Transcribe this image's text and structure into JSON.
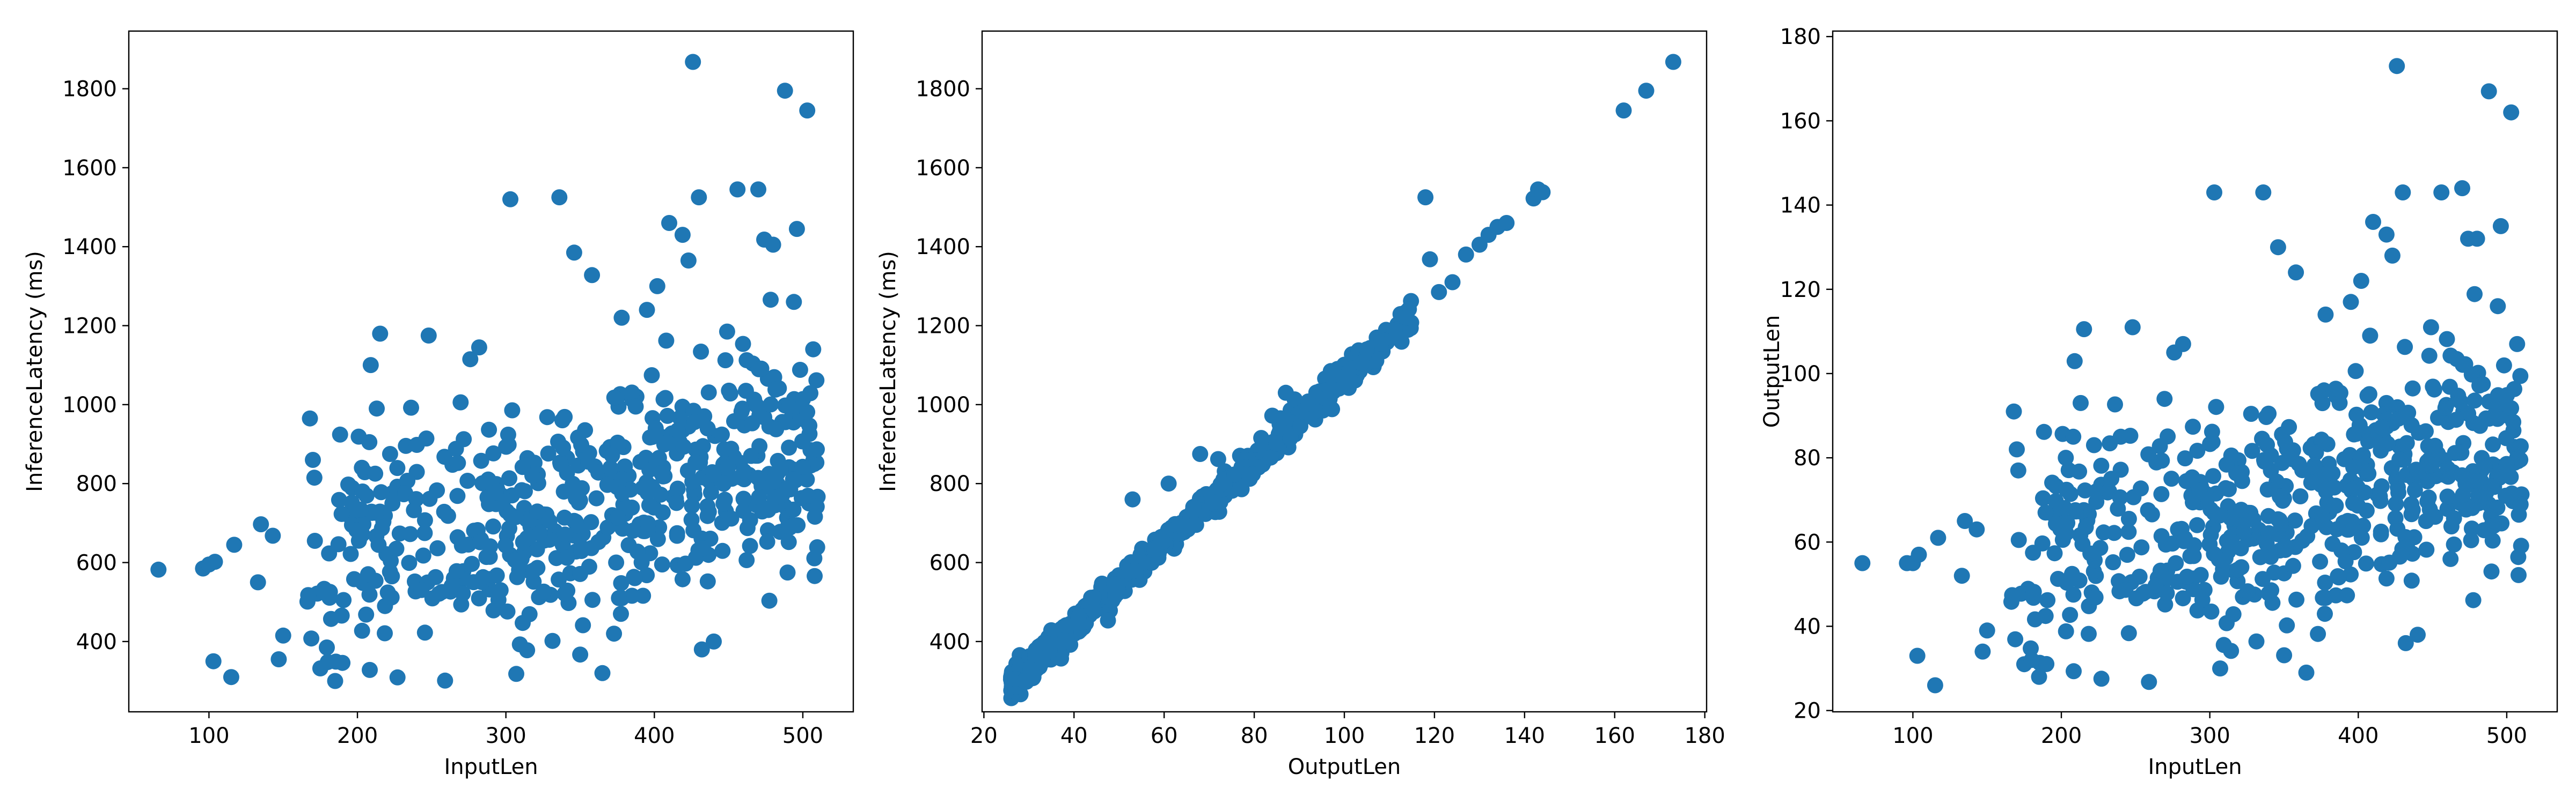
{
  "chart_data": [
    {
      "type": "scatter",
      "xlabel": "InputLen",
      "ylabel": "InferenceLatency (ms)",
      "xlim": [
        46,
        534
      ],
      "ylim": [
        222,
        1946
      ],
      "xticks": [
        100,
        200,
        300,
        400,
        500
      ],
      "yticks": [
        400,
        600,
        800,
        1000,
        1200,
        1400,
        1600,
        1800
      ],
      "grid": false,
      "color": "#1f77b4",
      "cloud": {
        "n": 560,
        "seed": 11,
        "x_min": 165,
        "x_max": 510,
        "x_skew": 0.72,
        "center": 710,
        "spread": 150,
        "slope": 0.75,
        "x_ref": 300
      },
      "points": [
        [
          66,
          582
        ],
        [
          96,
          585
        ],
        [
          100,
          595
        ],
        [
          104,
          602
        ],
        [
          103,
          350
        ],
        [
          115,
          310
        ],
        [
          117,
          645
        ],
        [
          133,
          550
        ],
        [
          135,
          697
        ],
        [
          143,
          668
        ],
        [
          147,
          355
        ],
        [
          150,
          415
        ],
        [
          168,
          965
        ],
        [
          170,
          860
        ],
        [
          171,
          815
        ],
        [
          175,
          332
        ],
        [
          180,
          348
        ],
        [
          185,
          300
        ],
        [
          203,
          840
        ],
        [
          208,
          905
        ],
        [
          213,
          990
        ],
        [
          222,
          875
        ],
        [
          240,
          898
        ],
        [
          248,
          1175
        ],
        [
          276,
          1115
        ],
        [
          282,
          1145
        ],
        [
          303,
          1520
        ],
        [
          307,
          318
        ],
        [
          336,
          1525
        ],
        [
          346,
          1385
        ],
        [
          358,
          1328
        ],
        [
          365,
          320
        ],
        [
          378,
          1220
        ],
        [
          395,
          1240
        ],
        [
          402,
          1300
        ],
        [
          408,
          1162
        ],
        [
          410,
          1460
        ],
        [
          419,
          1430
        ],
        [
          423,
          1365
        ],
        [
          426,
          1868
        ],
        [
          430,
          1525
        ],
        [
          432,
          380
        ],
        [
          440,
          400
        ],
        [
          449,
          1185
        ],
        [
          456,
          1545
        ],
        [
          470,
          1545
        ],
        [
          474,
          1418
        ],
        [
          480,
          1405
        ],
        [
          488,
          1795
        ],
        [
          494,
          1260
        ],
        [
          496,
          1445
        ],
        [
          503,
          1745
        ],
        [
          507,
          1140
        ]
      ]
    },
    {
      "type": "scatter",
      "xlabel": "OutputLen",
      "ylabel": "InferenceLatency (ms)",
      "xlim": [
        19.6,
        180.4
      ],
      "ylim": [
        222,
        1946
      ],
      "xticks": [
        20,
        40,
        60,
        80,
        100,
        120,
        140,
        160,
        180
      ],
      "yticks": [
        400,
        600,
        800,
        1000,
        1200,
        1400,
        1600,
        1800
      ],
      "grid": false,
      "color": "#1f77b4",
      "cloud": {
        "n": 620,
        "seed": 23,
        "x_min": 26,
        "x_max": 115,
        "x_skew": 1.5,
        "intercept": 22,
        "slope": 10.45,
        "noise": 18
      },
      "points": [
        [
          27,
          305
        ],
        [
          29,
          300
        ],
        [
          31,
          310
        ],
        [
          34,
          395
        ],
        [
          38,
          402
        ],
        [
          41,
          460
        ],
        [
          53,
          760
        ],
        [
          61,
          800
        ],
        [
          68,
          875
        ],
        [
          72,
          862
        ],
        [
          84,
          972
        ],
        [
          87,
          1030
        ],
        [
          88,
          915
        ],
        [
          92,
          1008
        ],
        [
          97,
          1085
        ],
        [
          101,
          1082
        ],
        [
          105,
          1140
        ],
        [
          118,
          1525
        ],
        [
          119,
          1368
        ],
        [
          121,
          1285
        ],
        [
          124,
          1310
        ],
        [
          127,
          1380
        ],
        [
          130,
          1405
        ],
        [
          132,
          1430
        ],
        [
          134,
          1450
        ],
        [
          136,
          1460
        ],
        [
          142,
          1522
        ],
        [
          143,
          1545
        ],
        [
          144,
          1538
        ],
        [
          162,
          1745
        ],
        [
          167,
          1795
        ],
        [
          173,
          1868
        ]
      ]
    },
    {
      "type": "scatter",
      "xlabel": "InputLen",
      "ylabel": "OutputLen",
      "xlim": [
        46,
        534
      ],
      "ylim": [
        19.7,
        181.3
      ],
      "xticks": [
        100,
        200,
        300,
        400,
        500
      ],
      "yticks": [
        20,
        40,
        60,
        80,
        100,
        120,
        140,
        160,
        180
      ],
      "grid": false,
      "color": "#1f77b4",
      "cloud": {
        "n": 560,
        "seed": 11,
        "x_min": 165,
        "x_max": 510,
        "x_skew": 0.72,
        "center": 65.8,
        "spread": 14.3,
        "slope": 0.072,
        "x_ref": 300
      },
      "points": [
        [
          66,
          55
        ],
        [
          96,
          55
        ],
        [
          100,
          55
        ],
        [
          104,
          57
        ],
        [
          103,
          33
        ],
        [
          115,
          26
        ],
        [
          117,
          61
        ],
        [
          133,
          52
        ],
        [
          135,
          65
        ],
        [
          143,
          63
        ],
        [
          147,
          34
        ],
        [
          150,
          39
        ],
        [
          168,
          91
        ],
        [
          170,
          82
        ],
        [
          171,
          77
        ],
        [
          175,
          31
        ],
        [
          180,
          32
        ],
        [
          185,
          28
        ],
        [
          203,
          80
        ],
        [
          208,
          85
        ],
        [
          213,
          93
        ],
        [
          222,
          83
        ],
        [
          240,
          85
        ],
        [
          248,
          111
        ],
        [
          276,
          105
        ],
        [
          282,
          107
        ],
        [
          303,
          143
        ],
        [
          307,
          30
        ],
        [
          336,
          143
        ],
        [
          346,
          130
        ],
        [
          358,
          124
        ],
        [
          365,
          29
        ],
        [
          378,
          114
        ],
        [
          395,
          117
        ],
        [
          402,
          122
        ],
        [
          408,
          109
        ],
        [
          410,
          136
        ],
        [
          419,
          133
        ],
        [
          423,
          128
        ],
        [
          426,
          173
        ],
        [
          430,
          143
        ],
        [
          432,
          36
        ],
        [
          440,
          38
        ],
        [
          449,
          111
        ],
        [
          456,
          143
        ],
        [
          470,
          144
        ],
        [
          474,
          132
        ],
        [
          480,
          132
        ],
        [
          488,
          167
        ],
        [
          494,
          116
        ],
        [
          496,
          135
        ],
        [
          503,
          162
        ],
        [
          507,
          107
        ]
      ]
    }
  ]
}
